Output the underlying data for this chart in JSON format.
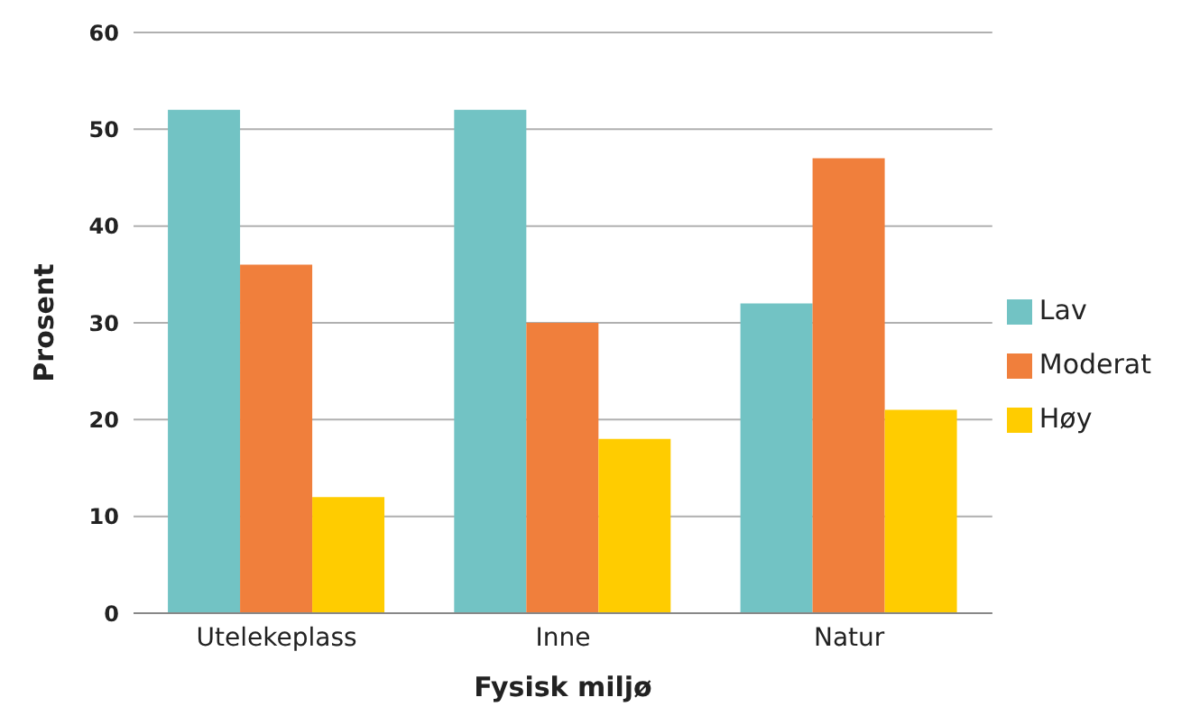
{
  "chart_data": {
    "type": "bar",
    "xlabel": "Fysisk miljø",
    "ylabel": "Prosent",
    "categories": [
      "Utelekeplass",
      "Inne",
      "Natur"
    ],
    "series": [
      {
        "name": "Lav",
        "color": "#72c3c4",
        "values": [
          52,
          52,
          32
        ]
      },
      {
        "name": "Moderat",
        "color": "#f07f3c",
        "values": [
          36,
          30,
          47
        ]
      },
      {
        "name": "Høy",
        "color": "#ffcc00",
        "values": [
          12,
          18,
          21
        ]
      }
    ],
    "ylim": [
      0,
      60
    ],
    "yticks": [
      0,
      10,
      20,
      30,
      40,
      50,
      60
    ],
    "grid": "y",
    "legend": "right"
  }
}
